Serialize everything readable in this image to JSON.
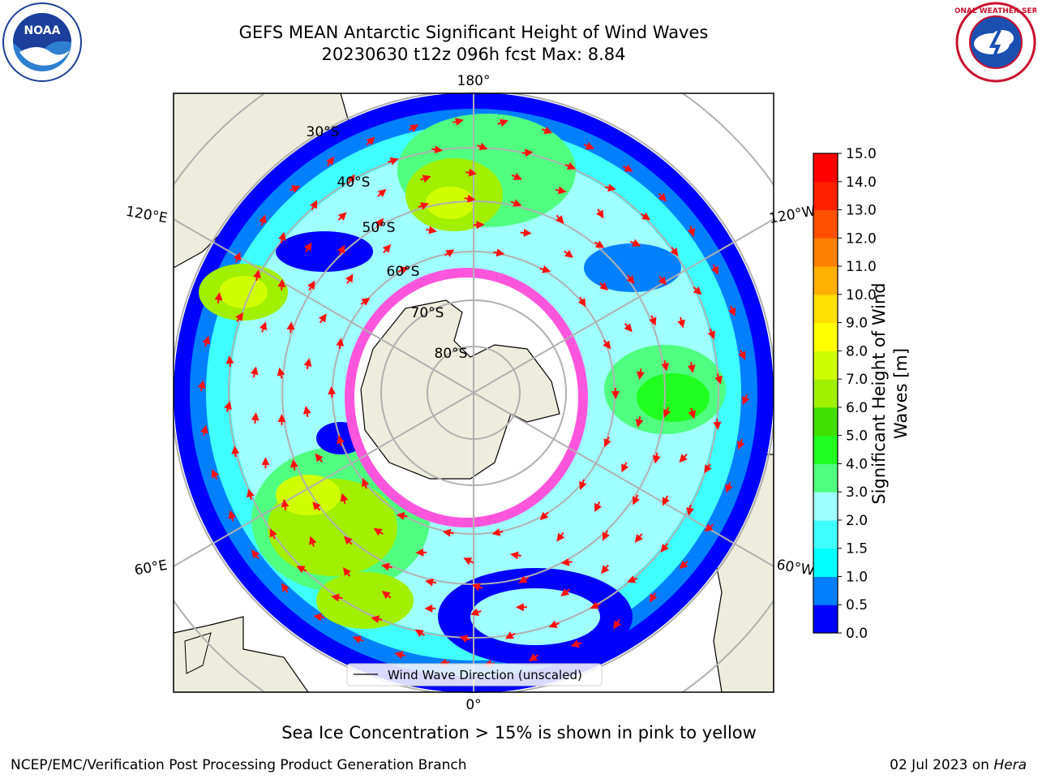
{
  "title": {
    "line1": "GEFS MEAN Antarctic Significant Height of Wind Waves",
    "line2": "20230630 t12z 096h fcst   Max: 8.84"
  },
  "logos": {
    "left": "NOAA",
    "right_text": "NATIONAL WEATHER SERVICE"
  },
  "map": {
    "projection": "south polar stereographic",
    "longitude_labels": [
      "180°",
      "120°E",
      "120°W",
      "60°E",
      "60°W",
      "0°"
    ],
    "latitude_labels": [
      "30°S",
      "40°S",
      "50°S",
      "60°S",
      "70°S",
      "80°S"
    ],
    "legend_label": "Wind Wave Direction (unscaled)",
    "land_color": "#eeecdc",
    "ice_color": "#ff55dd",
    "arrow_color": "#ff1010"
  },
  "colorbar": {
    "title": "Significant Height of Wind Waves [m]",
    "ticks": [
      "0.0",
      "0.5",
      "1.0",
      "1.5",
      "2.0",
      "3.0",
      "4.0",
      "5.0",
      "6.0",
      "7.0",
      "8.0",
      "9.0",
      "10.0",
      "11.0",
      "12.0",
      "13.0",
      "14.0",
      "15.0"
    ],
    "colors": [
      "#0000ff",
      "#0080ff",
      "#00ffff",
      "#40ffff",
      "#a0ffff",
      "#50ff80",
      "#20ff20",
      "#40e000",
      "#a0f000",
      "#d0ff00",
      "#ffff00",
      "#ffe000",
      "#ffb000",
      "#ff8000",
      "#ff5000",
      "#ff2000",
      "#ff0000"
    ]
  },
  "notes": {
    "sea_ice": "Sea Ice Concentration > 15% is shown in pink to yellow",
    "footer_left": "NCEP/EMC/Verification Post Processing Product Generation Branch",
    "footer_right_date": "02 Jul 2023 on ",
    "footer_right_host": "Hera"
  }
}
